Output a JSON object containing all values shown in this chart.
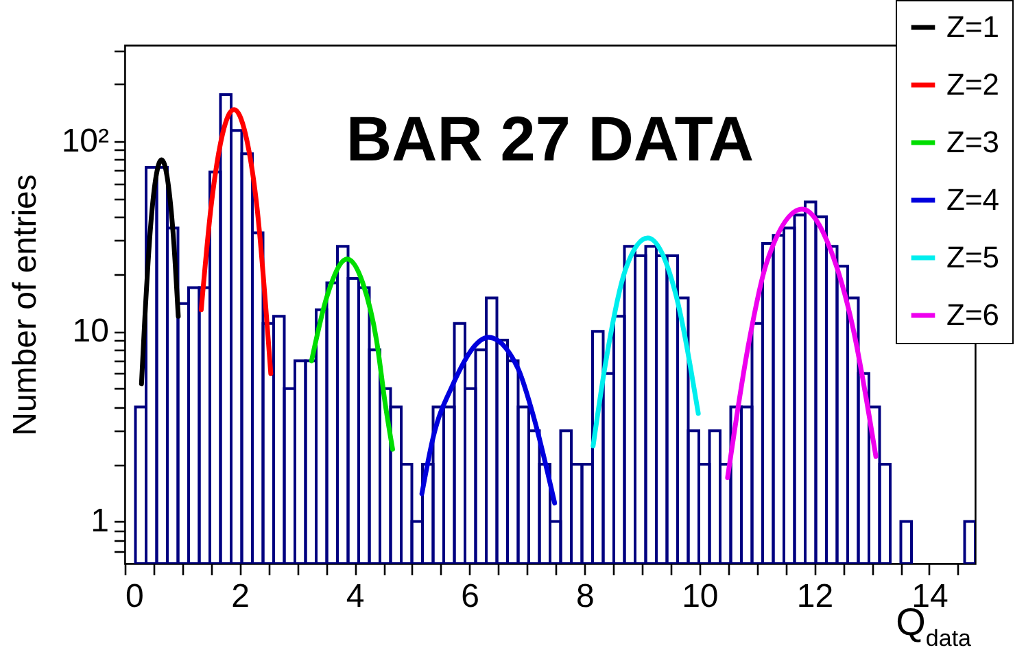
{
  "chart_data": {
    "type": "histogram",
    "title": "BAR 27 DATA",
    "xlabel": "Q$_{data}$",
    "ylabel": "Number of entries",
    "color": "#000080",
    "bins": [
      0,
      0.185,
      0.37,
      0.555,
      0.74,
      0.925,
      1.11,
      1.295,
      1.48,
      1.665,
      1.85,
      2.035,
      2.22,
      2.405,
      2.59,
      2.775,
      2.96,
      3.145,
      3.33,
      3.515,
      3.7,
      3.885,
      4.07,
      4.255,
      4.44,
      4.625,
      4.81,
      4.995,
      5.18,
      5.365,
      5.55,
      5.735,
      5.92,
      6.105,
      6.29,
      6.475,
      6.66,
      6.845,
      7.03,
      7.215,
      7.4,
      7.585,
      7.77,
      7.955,
      8.14,
      8.325,
      8.51,
      8.695,
      8.88,
      9.065,
      9.25,
      9.435,
      9.62,
      9.805,
      9.99,
      10.175,
      10.36,
      10.545,
      10.73,
      10.915,
      11.1,
      11.285,
      11.47,
      11.655,
      11.84,
      12.025,
      12.21,
      12.395,
      12.58,
      12.765,
      12.95,
      13.135,
      13.32,
      13.505,
      13.69,
      13.875,
      14.06,
      14.245,
      14.43,
      14.615,
      14.8
    ],
    "values": [
      null,
      4,
      73,
      73,
      35,
      14,
      17,
      17,
      69,
      176,
      114,
      86,
      33,
      11,
      12,
      5,
      7,
      7,
      13,
      18,
      28,
      19,
      17,
      8,
      5,
      4,
      2,
      1,
      2,
      4,
      4,
      11,
      5,
      8,
      15,
      9,
      7,
      4,
      3,
      2,
      1,
      3,
      2,
      2,
      10,
      6,
      12,
      28,
      25,
      28,
      25,
      25,
      15,
      3,
      2,
      3,
      2,
      4,
      4,
      11,
      29,
      32,
      35,
      41,
      48,
      40,
      28,
      22,
      15,
      6,
      4,
      2,
      null,
      1,
      null,
      null,
      null,
      null,
      null,
      1
    ],
    "series": [
      {
        "name": "Z=1",
        "type": "line",
        "color": "#000000",
        "x": [
          0.29,
          0.35,
          0.45,
          0.55,
          0.64,
          0.75,
          0.85,
          0.93
        ],
        "values": [
          5.3,
          12,
          36,
          67,
          80,
          61,
          30,
          12
        ]
      },
      {
        "name": "Z=2",
        "type": "line",
        "color": "#ff0000",
        "x": [
          1.33,
          1.5,
          1.7,
          1.9,
          2.1,
          2.3,
          2.54
        ],
        "values": [
          13,
          45,
          109,
          147,
          109,
          45,
          6
        ]
      },
      {
        "name": "Z=3",
        "type": "line",
        "color": "#00dd00",
        "x": [
          3.25,
          3.51,
          3.87,
          4.14,
          4.38,
          4.54,
          4.66
        ],
        "values": [
          7,
          15,
          24,
          18,
          9,
          4,
          2.4
        ]
      },
      {
        "name": "Z=4",
        "type": "line",
        "color": "#0000dd",
        "x": [
          5.17,
          5.37,
          5.69,
          6.33,
          6.84,
          7.12,
          7.48
        ],
        "values": [
          1.4,
          2.8,
          5.1,
          9.3,
          6.4,
          3.5,
          1.25
        ]
      },
      {
        "name": "Z=5",
        "type": "line",
        "color": "#00eeee",
        "x": [
          8.15,
          8.39,
          8.71,
          9.1,
          9.58,
          9.98
        ],
        "values": [
          2.5,
          7.5,
          21,
          31,
          16,
          3.7
        ]
      },
      {
        "name": "Z=6",
        "type": "line",
        "color": "#ee00ee",
        "x": [
          10.49,
          10.85,
          11.17,
          11.79,
          12.28,
          12.67,
          13.07
        ],
        "values": [
          1.7,
          8.4,
          23,
          44,
          27,
          10.5,
          2.2
        ]
      }
    ],
    "xlim": [
      0,
      14.8
    ],
    "ylim": [
      0.6,
      320
    ],
    "log": "y",
    "xticks": [
      0,
      {
        "value": 0.5,
        "label": null
      },
      {
        "value": 1,
        "label": null
      },
      {
        "value": 1.5,
        "label": null
      },
      2,
      {
        "value": 2.5,
        "label": null
      },
      {
        "value": 3,
        "label": null
      },
      {
        "value": 3.5,
        "label": null
      },
      4,
      {
        "value": 4.5,
        "label": null
      },
      {
        "value": 5,
        "label": null
      },
      {
        "value": 5.5,
        "label": null
      },
      6,
      {
        "value": 6.5,
        "label": null
      },
      {
        "value": 7,
        "label": null
      },
      {
        "value": 7.5,
        "label": null
      },
      8,
      {
        "value": 8.5,
        "label": null
      },
      {
        "value": 9,
        "label": null
      },
      {
        "value": 9.5,
        "label": null
      },
      10,
      {
        "value": 10.5,
        "label": null
      },
      {
        "value": 11,
        "label": null
      },
      {
        "value": 11.5,
        "label": null
      },
      12,
      {
        "value": 12.5,
        "label": null
      },
      {
        "value": 13,
        "label": null
      },
      {
        "value": 13.5,
        "label": null
      },
      14,
      {
        "value": 14.5,
        "label": null
      }
    ],
    "yticks": [
      {
        "value": 0.7,
        "label": null
      },
      {
        "value": 0.8,
        "label": null
      },
      {
        "value": 0.9,
        "label": null
      },
      1,
      {
        "value": 2,
        "label": null
      },
      {
        "value": 3,
        "label": null
      },
      {
        "value": 4,
        "label": null
      },
      {
        "value": 5,
        "label": null
      },
      {
        "value": 6,
        "label": null
      },
      {
        "value": 7,
        "label": null
      },
      {
        "value": 8,
        "label": null
      },
      {
        "value": 9,
        "label": null
      },
      10,
      {
        "value": 20,
        "label": null
      },
      {
        "value": 30,
        "label": null
      },
      {
        "value": 40,
        "label": null
      },
      {
        "value": 50,
        "label": null
      },
      {
        "value": 60,
        "label": null
      },
      {
        "value": 70,
        "label": null
      },
      {
        "value": 80,
        "label": null
      },
      {
        "value": 90,
        "label": null
      },
      {
        "value": 100,
        "label": "10²"
      },
      {
        "value": 200,
        "label": null
      },
      {
        "value": 300,
        "label": null
      }
    ],
    "grid": false,
    "legend": "top right",
    "marker": "none"
  }
}
